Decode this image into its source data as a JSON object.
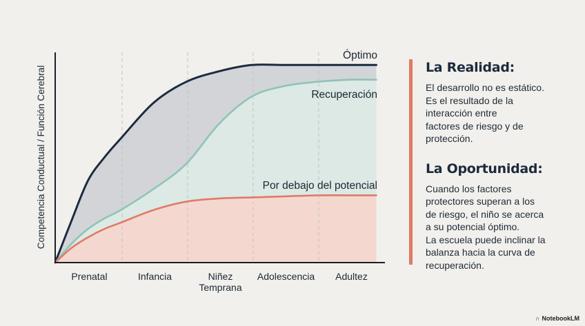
{
  "chart_data": {
    "type": "area",
    "title": "",
    "xlabel": "",
    "ylabel": "Competencia Conductual / Función Cerebral",
    "categories": [
      "Prenatal",
      "Infancia",
      "Niñez\nTemprana",
      "Adolescencia",
      "Adultez"
    ],
    "category_lines": [
      [
        "Prenatal"
      ],
      [
        "Infancia"
      ],
      [
        "Niñez",
        "Temprana"
      ],
      [
        "Adolescencia"
      ],
      [
        "Adultez"
      ]
    ],
    "x_range": [
      0,
      5
    ],
    "y_range": [
      0,
      1
    ],
    "grid": "vertical dashed lines between stages",
    "legend": "inline labels at right end of curves",
    "series": [
      {
        "name": "Óptimo",
        "color": "#1c2b40",
        "fill": "#d3d4d8",
        "x": [
          0,
          0.25,
          0.5,
          0.75,
          1,
          1.5,
          2,
          2.5,
          3,
          3.5,
          4,
          4.5,
          4.9
        ],
        "values": [
          0,
          0.2,
          0.39,
          0.5,
          0.59,
          0.76,
          0.86,
          0.91,
          0.94,
          0.94,
          0.94,
          0.94,
          0.94
        ]
      },
      {
        "name": "Recuperación",
        "color": "#8ec4b6",
        "fill": "#dce9e4",
        "x": [
          0,
          0.25,
          0.5,
          0.75,
          1,
          1.5,
          2,
          2.5,
          3,
          3.5,
          4,
          4.5,
          4.9
        ],
        "values": [
          0,
          0.09,
          0.16,
          0.21,
          0.25,
          0.35,
          0.47,
          0.66,
          0.79,
          0.84,
          0.86,
          0.87,
          0.87
        ]
      },
      {
        "name": "Por debajo del potencial",
        "color": "#e07a66",
        "fill": "#f4d8d0",
        "x": [
          0,
          0.25,
          0.5,
          0.75,
          1,
          1.5,
          2,
          2.5,
          3,
          3.5,
          4,
          4.5,
          4.9
        ],
        "values": [
          0,
          0.07,
          0.12,
          0.16,
          0.19,
          0.25,
          0.29,
          0.305,
          0.31,
          0.315,
          0.32,
          0.32,
          0.32
        ]
      }
    ]
  },
  "panel": {
    "accent_color": "#e07a66",
    "sections": [
      {
        "heading": "La Realidad:",
        "body_lines": [
          "El desarrollo no es estático.",
          "Es el resultado de la",
          "interacción entre",
          "factores de riesgo y de",
          "protección."
        ]
      },
      {
        "heading": "La Oportunidad:",
        "body_lines": [
          "Cuando los factores",
          "protectores superan a los",
          "de riesgo, el niño se acerca",
          "a su potencial óptimo.",
          "La escuela puede inclinar la",
          "balanza hacia la curva de",
          "recuperación."
        ]
      }
    ]
  },
  "watermark": {
    "icon": "notebooklm-logo-icon",
    "label": "NotebookLM"
  }
}
